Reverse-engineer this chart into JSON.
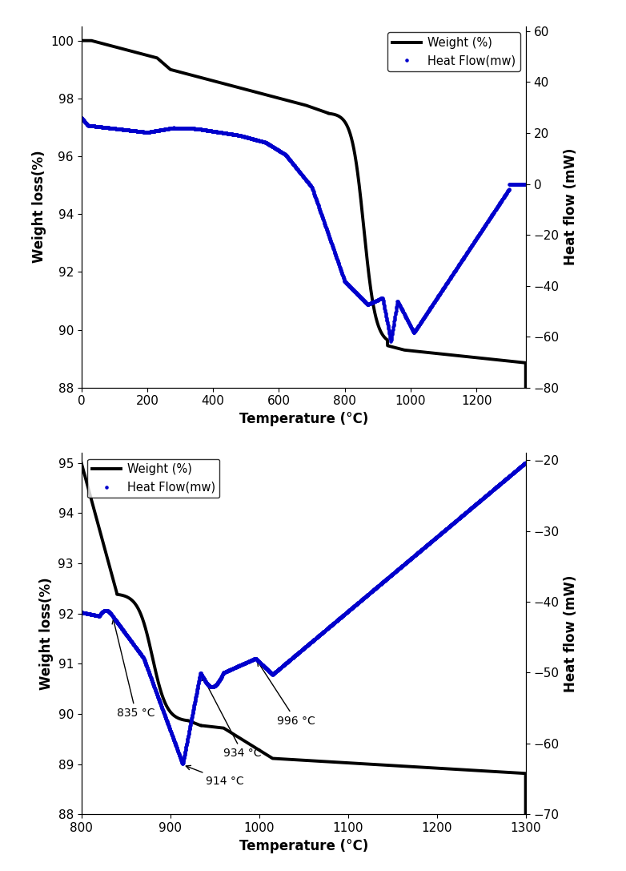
{
  "plot1": {
    "xlabel": "Temperature (°C)",
    "ylabel": "Weight loss(%)",
    "ylabel2": "Heat flow (mW)",
    "xlim": [
      0,
      1350
    ],
    "ylim": [
      88,
      100.5
    ],
    "ylim2": [
      -80,
      62
    ],
    "yticks": [
      88,
      90,
      92,
      94,
      96,
      98,
      100
    ],
    "yticks2": [
      -80,
      -60,
      -40,
      -20,
      0,
      20,
      40,
      60
    ],
    "xticks": [
      0,
      200,
      400,
      600,
      800,
      1000,
      1200
    ],
    "legend_entries": [
      "Weight (%)",
      "Heat Flow(mw)"
    ],
    "weight_color": "#000000",
    "heat_color": "#0000cc"
  },
  "plot2": {
    "xlabel": "Temperature (°C)",
    "ylabel": "Weight loss(%)",
    "ylabel2": "Heat flow (mW)",
    "xlim": [
      800,
      1300
    ],
    "ylim": [
      88,
      95.2
    ],
    "ylim2": [
      -70,
      -19
    ],
    "yticks": [
      88,
      89,
      90,
      91,
      92,
      93,
      94,
      95
    ],
    "yticks2": [
      -70,
      -60,
      -50,
      -40,
      -30,
      -20
    ],
    "xticks": [
      800,
      900,
      1000,
      1100,
      1200,
      1300
    ],
    "legend_entries": [
      "Weight (%)",
      "Heat Flow(mw)"
    ],
    "weight_color": "#000000",
    "heat_color": "#0000cc"
  }
}
